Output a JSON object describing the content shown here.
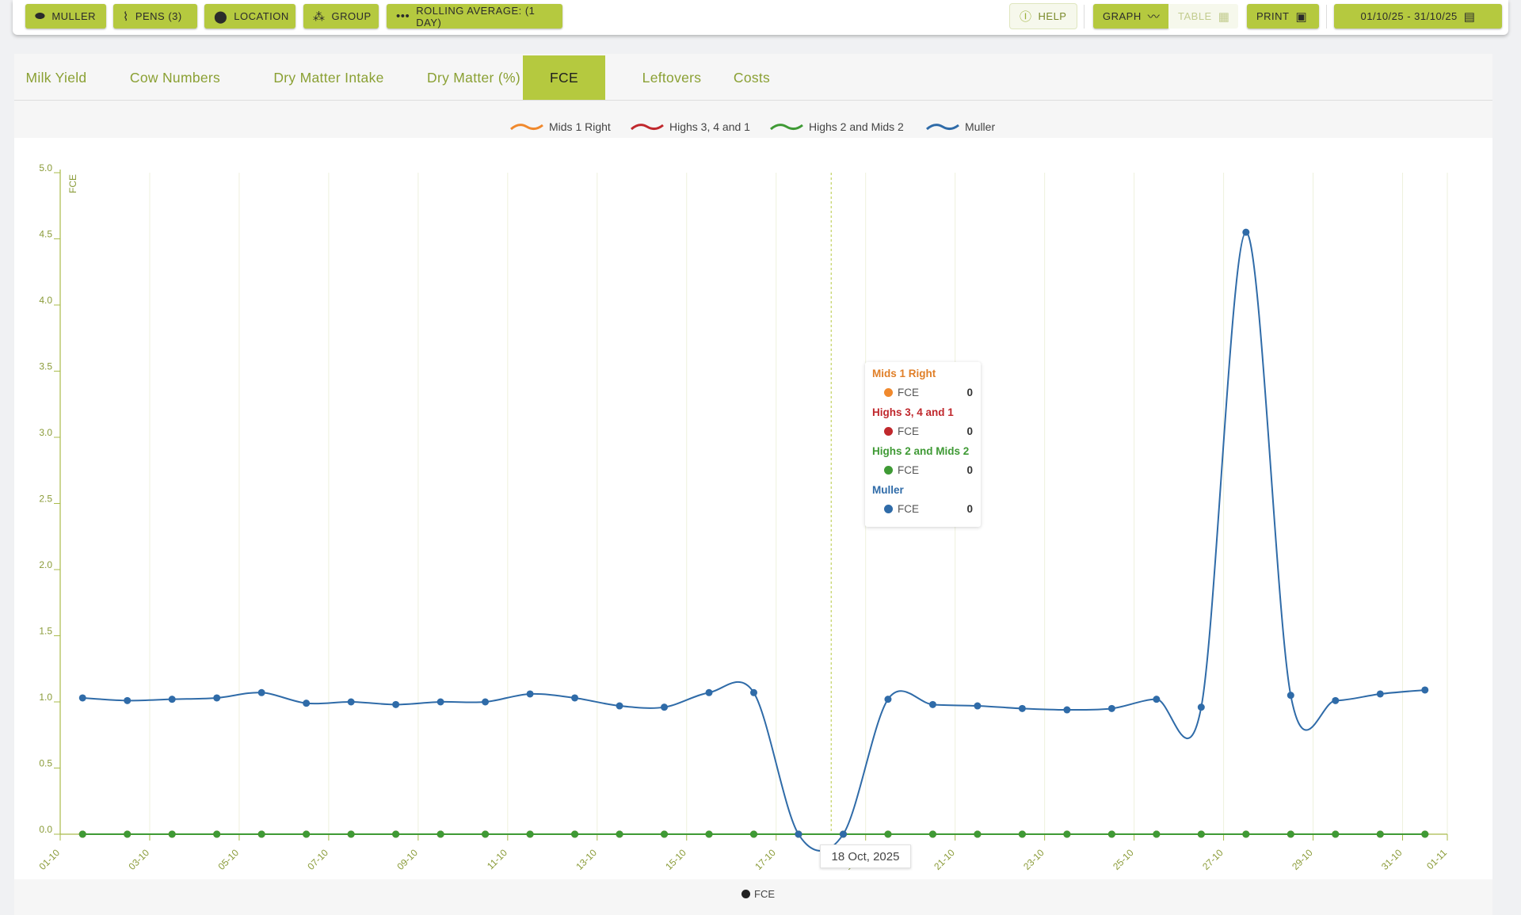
{
  "toolbar": {
    "muller": "MULLER",
    "pens": "PENS (3)",
    "location": "LOCATION",
    "group": "GROUP",
    "rolling": "ROLLING AVERAGE: (1 DAY)",
    "help": "HELP",
    "graph": "GRAPH",
    "table": "TABLE",
    "print": "PRINT",
    "date_range": "01/10/25 - 31/10/25"
  },
  "tabs": [
    "Milk Yield",
    "Cow Numbers",
    "Dry Matter Intake",
    "Dry Matter (%)",
    "FCE",
    "Leftovers",
    "Costs"
  ],
  "active_tab": "FCE",
  "colors": {
    "accent": "#b5c93f",
    "mids1right": "#f0892d",
    "highs341": "#c0282d",
    "highs2mids2": "#3f9a35",
    "muller": "#2f6ba8"
  },
  "tooltip": {
    "rows": [
      {
        "title": "Mids 1 Right",
        "label": "FCE",
        "value": "0"
      },
      {
        "title": "Highs 3, 4 and 1",
        "label": "FCE",
        "value": "0"
      },
      {
        "title": "Highs 2 and Mids 2",
        "label": "FCE",
        "value": "0"
      },
      {
        "title": "Muller",
        "label": "FCE",
        "value": "0"
      }
    ]
  },
  "hover_date": "18 Oct, 2025",
  "bottom_legend": "FCE",
  "chart_data": {
    "type": "line",
    "ylabel": "FCE",
    "ylim": [
      0,
      5
    ],
    "yticks": [
      "0.0",
      "0.5",
      "1.0",
      "1.5",
      "2.0",
      "2.5",
      "3.0",
      "3.5",
      "4.0",
      "4.5",
      "5.0"
    ],
    "xticks": [
      "01-10",
      "03-10",
      "05-10",
      "07-10",
      "09-10",
      "11-10",
      "13-10",
      "15-10",
      "17-10",
      "19-10",
      "21-10",
      "23-10",
      "25-10",
      "27-10",
      "29-10",
      "31-10",
      "01-11"
    ],
    "xlim": [
      "2025-10-01",
      "2025-11-01"
    ],
    "x": [
      "2025-10-01",
      "2025-10-02",
      "2025-10-03",
      "2025-10-04",
      "2025-10-05",
      "2025-10-06",
      "2025-10-07",
      "2025-10-08",
      "2025-10-09",
      "2025-10-10",
      "2025-10-11",
      "2025-10-12",
      "2025-10-13",
      "2025-10-14",
      "2025-10-15",
      "2025-10-16",
      "2025-10-17",
      "2025-10-18",
      "2025-10-19",
      "2025-10-20",
      "2025-10-21",
      "2025-10-22",
      "2025-10-23",
      "2025-10-24",
      "2025-10-25",
      "2025-10-26",
      "2025-10-27",
      "2025-10-28",
      "2025-10-29",
      "2025-10-30",
      "2025-10-31"
    ],
    "legend": "top-center",
    "grid": true,
    "series": [
      {
        "name": "Mids 1 Right",
        "values": [
          0,
          0,
          0,
          0,
          0,
          0,
          0,
          0,
          0,
          0,
          0,
          0,
          0,
          0,
          0,
          0,
          0,
          0,
          0,
          0,
          0,
          0,
          0,
          0,
          0,
          0,
          0,
          0,
          0,
          0,
          0
        ]
      },
      {
        "name": "Highs 3, 4 and 1",
        "values": [
          0,
          0,
          0,
          0,
          0,
          0,
          0,
          0,
          0,
          0,
          0,
          0,
          0,
          0,
          0,
          0,
          0,
          0,
          0,
          0,
          0,
          0,
          0,
          0,
          0,
          0,
          0,
          0,
          0,
          0,
          0
        ]
      },
      {
        "name": "Highs 2 and Mids 2",
        "values": [
          0,
          0,
          0,
          0,
          0,
          0,
          0,
          0,
          0,
          0,
          0,
          0,
          0,
          0,
          0,
          0,
          0,
          0,
          0,
          0,
          0,
          0,
          0,
          0,
          0,
          0,
          0,
          0,
          0,
          0,
          0
        ]
      },
      {
        "name": "Muller",
        "values": [
          1.03,
          1.01,
          1.02,
          1.03,
          1.07,
          0.99,
          1.0,
          0.98,
          1.0,
          1.0,
          1.06,
          1.03,
          0.97,
          0.96,
          1.07,
          1.07,
          0,
          0,
          1.02,
          0.98,
          0.97,
          0.95,
          0.94,
          0.95,
          1.02,
          0.96,
          4.55,
          1.05,
          1.01,
          1.06,
          1.09
        ]
      }
    ]
  }
}
